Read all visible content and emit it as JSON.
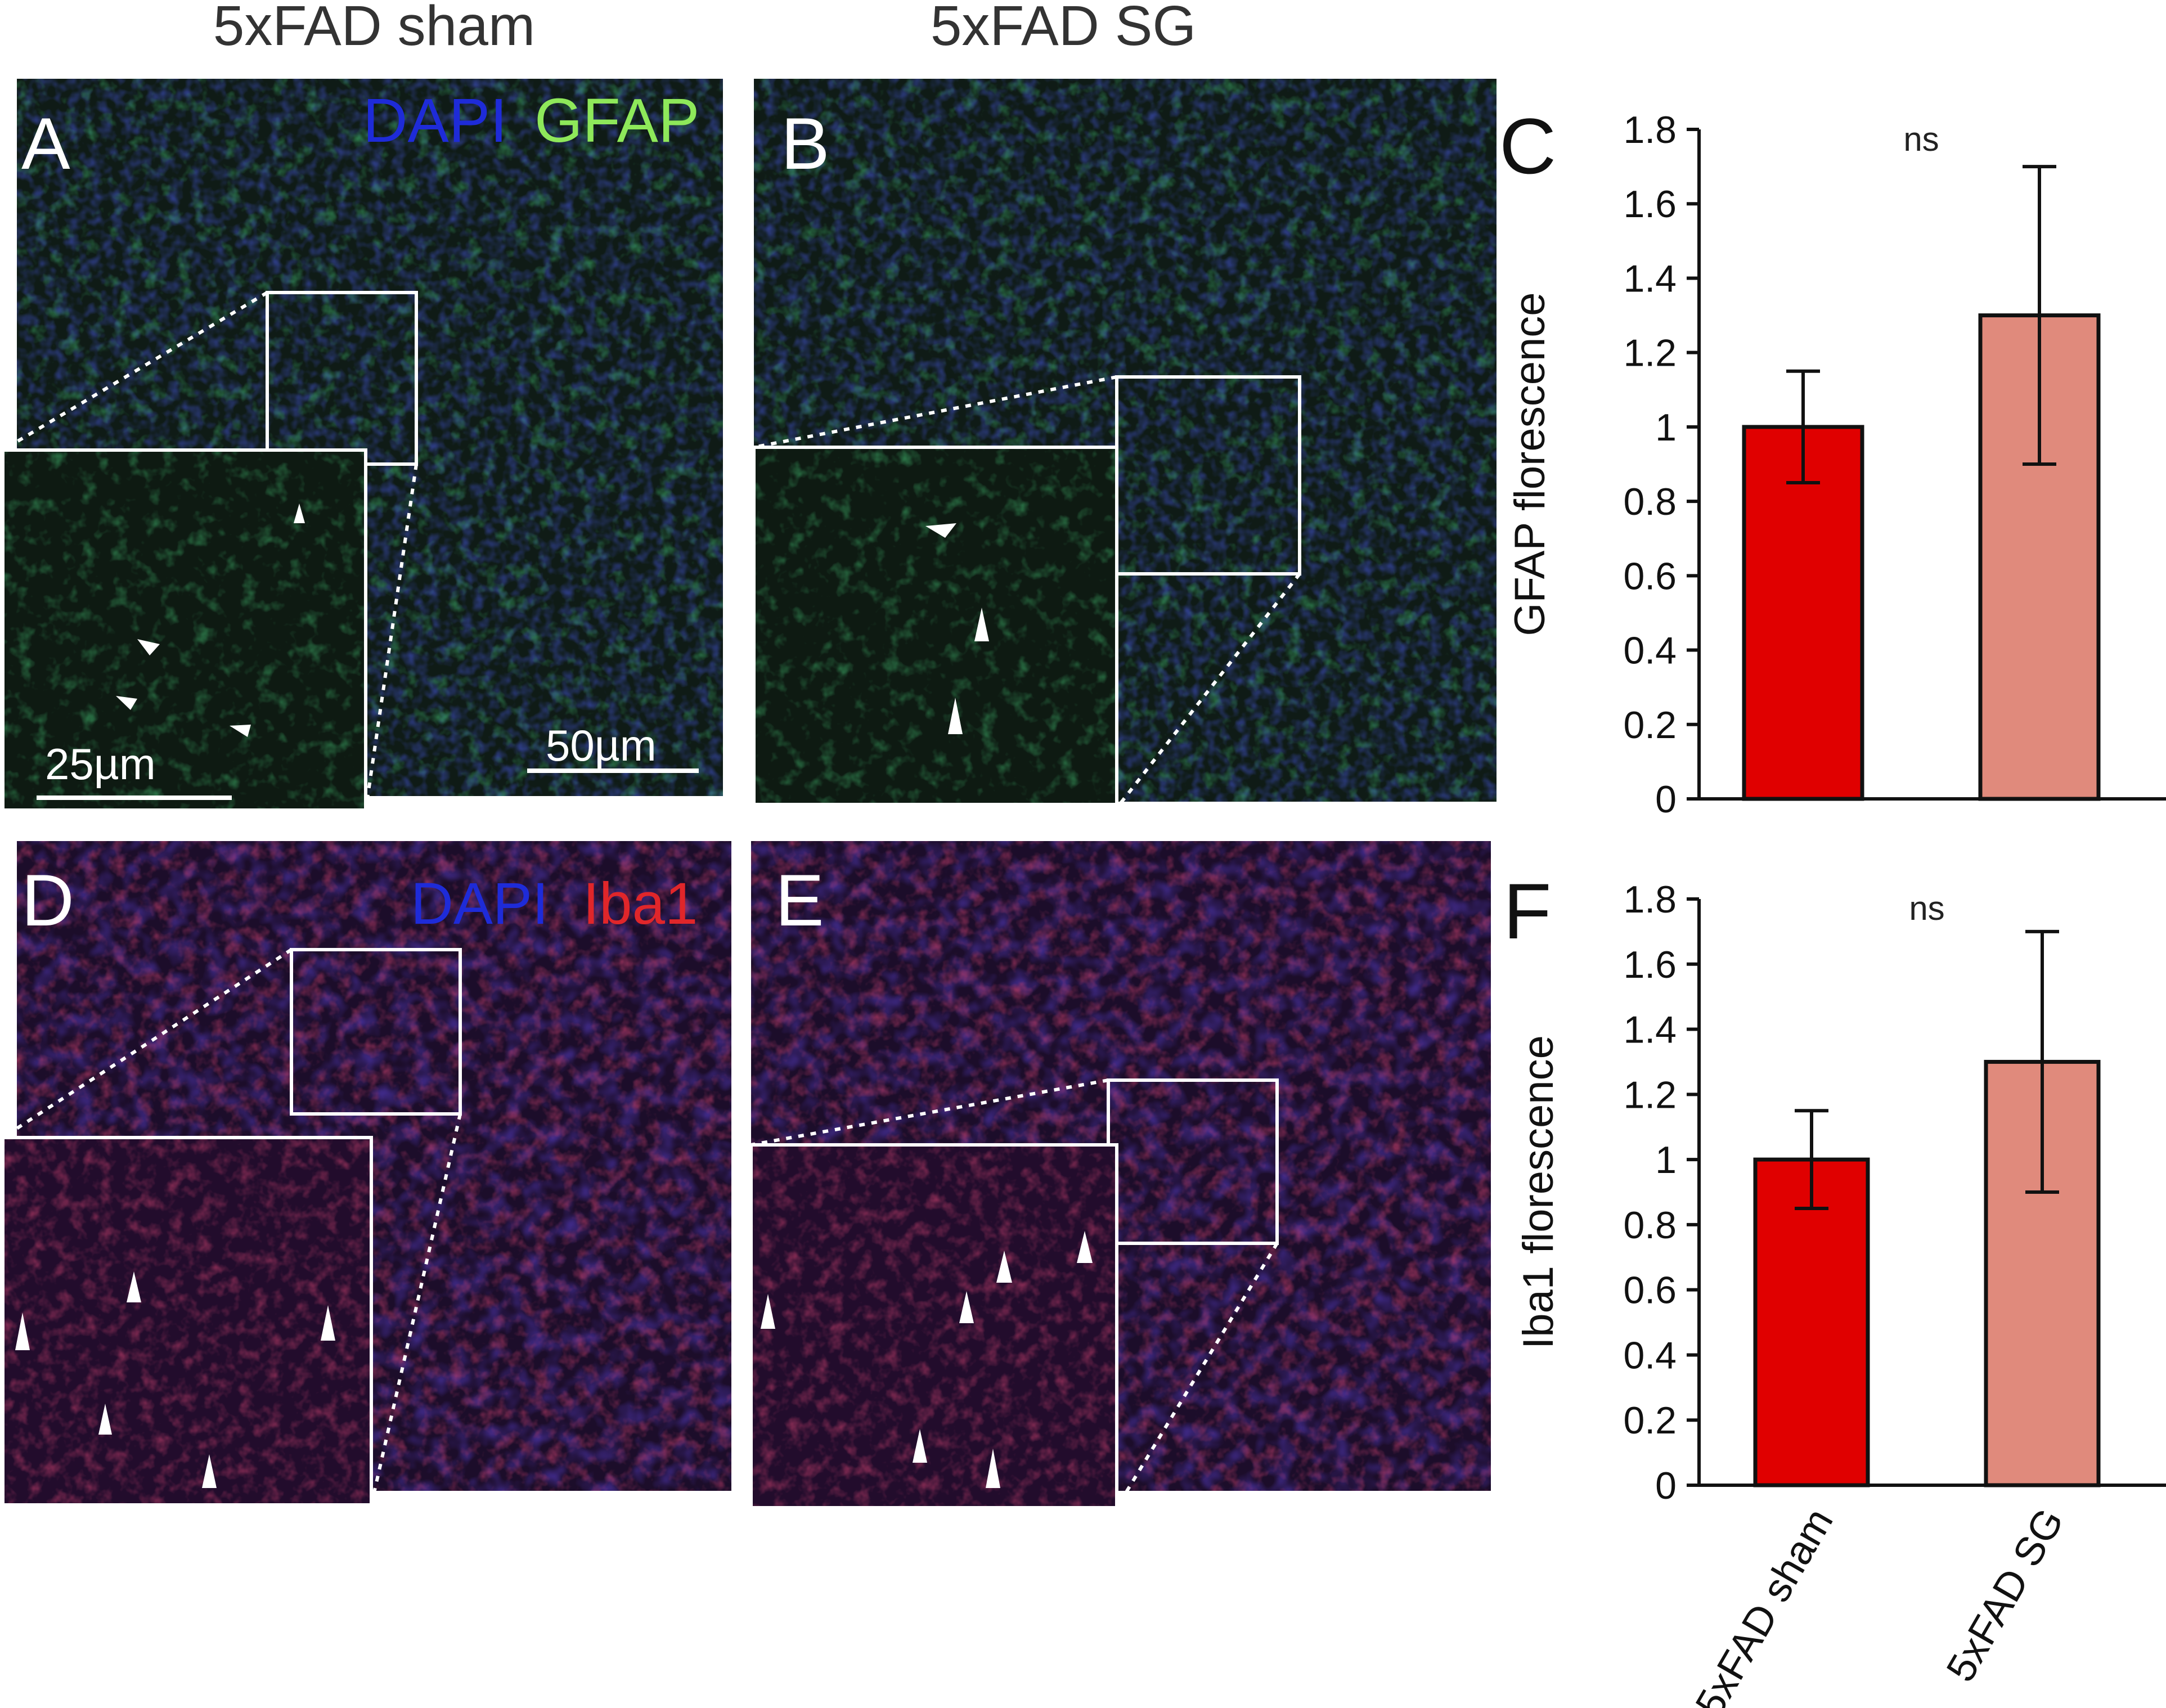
{
  "column_titles": {
    "sham": "5xFAD sham",
    "sg": "5xFAD SG"
  },
  "panels": {
    "A": {
      "letter": "A",
      "channel_1": "DAPI",
      "channel_2": "GFAP",
      "scale_main": "50µm",
      "scale_inset": "25µm"
    },
    "B": {
      "letter": "B"
    },
    "D": {
      "letter": "D",
      "channel_1": "DAPI",
      "channel_2": "Iba1"
    },
    "E": {
      "letter": "E"
    },
    "C": {
      "letter": "C"
    },
    "F": {
      "letter": "F"
    }
  },
  "colors": {
    "dapi": "#1e2bd8",
    "gfap": "#8ee85a",
    "iba1": "#e0262a",
    "bar_sham": "#e00000",
    "bar_sg": "#e08a7c",
    "gfap_tissue": "#101d18",
    "iba1_tissue": "#1c0d2a"
  },
  "chart_data": [
    {
      "panel": "C",
      "type": "bar",
      "categories": [
        "5xFAD sham",
        "5xFAD SG"
      ],
      "values": [
        1.0,
        1.3
      ],
      "error": [
        0.15,
        0.4
      ],
      "title": "",
      "xlabel": "",
      "ylabel": "GFAP florescence",
      "ylim": [
        0,
        1.8
      ],
      "yticks": [
        "0",
        "0.2",
        "0.4",
        "0.6",
        "0.8",
        "1",
        "1.2",
        "1.4",
        "1.6",
        "1.8"
      ],
      "annotation": "ns",
      "show_x_labels": false,
      "grid": false
    },
    {
      "panel": "F",
      "type": "bar",
      "categories": [
        "5xFAD sham",
        "5xFAD SG"
      ],
      "values": [
        1.0,
        1.3
      ],
      "error": [
        0.15,
        0.4
      ],
      "title": "",
      "xlabel": "",
      "ylabel": "Iba1 florescence",
      "ylim": [
        0,
        1.8
      ],
      "yticks": [
        "0",
        "0.2",
        "0.4",
        "0.6",
        "0.8",
        "1",
        "1.2",
        "1.4",
        "1.6",
        "1.8"
      ],
      "annotation": "ns",
      "show_x_labels": true,
      "grid": false
    }
  ]
}
